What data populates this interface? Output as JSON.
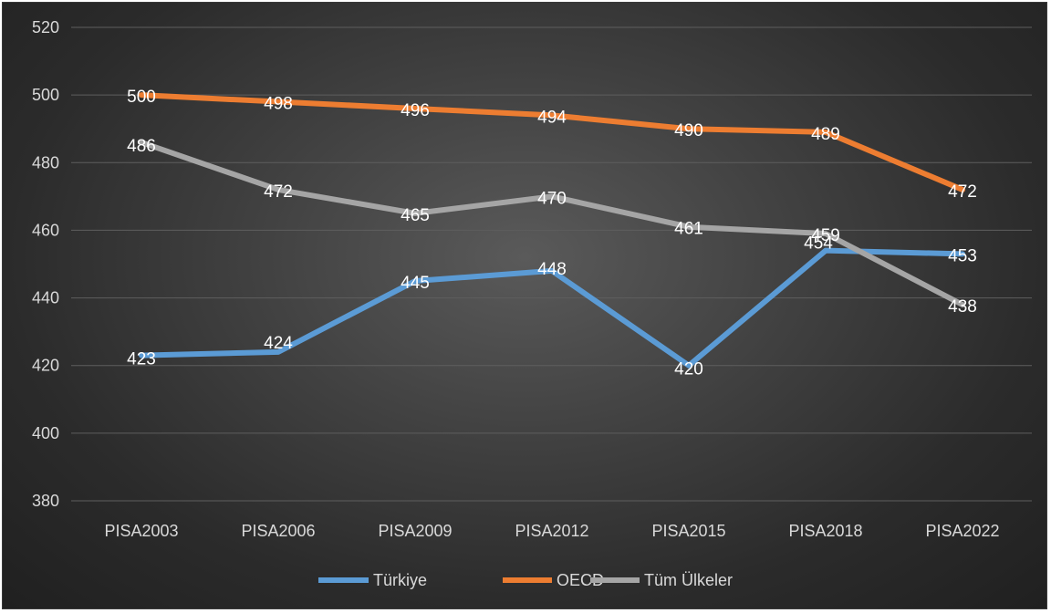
{
  "chart_data": {
    "type": "line",
    "title": "",
    "xlabel": "",
    "ylabel": "",
    "ylim": [
      380,
      520
    ],
    "ytick_step": 20,
    "grid": true,
    "legend_position": "bottom",
    "categories": [
      "PISA2003",
      "PISA2006",
      "PISA2009",
      "PISA2012",
      "PISA2015",
      "PISA2018",
      "PISA2022"
    ],
    "series": [
      {
        "name": "Türkiye",
        "color": "#5b9bd5",
        "values": [
          423,
          424,
          445,
          448,
          420,
          454,
          453
        ]
      },
      {
        "name": "OECD",
        "color": "#ed7d31",
        "values": [
          500,
          498,
          496,
          494,
          490,
          489,
          472
        ]
      },
      {
        "name": "Tüm Ülkeler",
        "color": "#a5a5a5",
        "values": [
          486,
          472,
          465,
          470,
          461,
          459,
          438
        ]
      }
    ]
  }
}
